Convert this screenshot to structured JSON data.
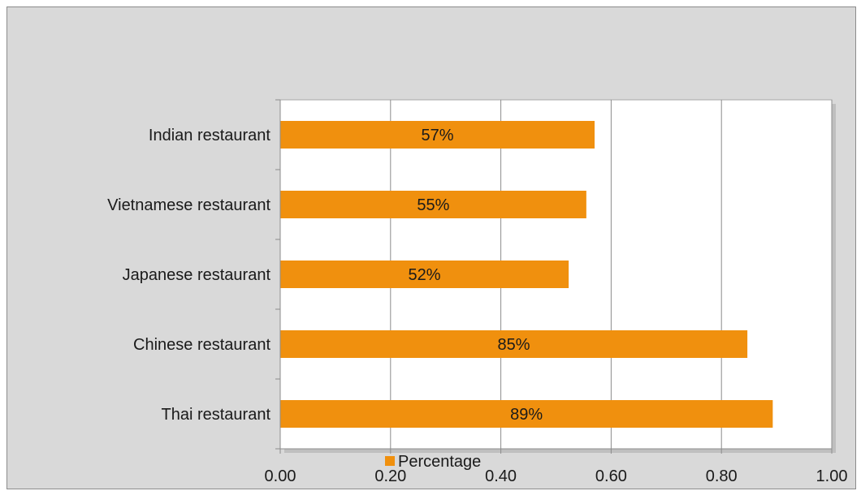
{
  "chart_data": {
    "type": "bar",
    "orientation": "horizontal",
    "categories": [
      "Indian restaurant",
      "Vietnamese restaurant",
      "Japanese restaurant",
      "Chinese restaurant",
      "Thai restaurant"
    ],
    "series": [
      {
        "name": "Percentage",
        "values": [
          0.57,
          0.555,
          0.523,
          0.847,
          0.893
        ],
        "data_labels": [
          "57%",
          "55%",
          "52%",
          "85%",
          "89%"
        ]
      }
    ],
    "xlim": [
      0,
      1.0
    ],
    "x_ticks": [
      0.0,
      0.2,
      0.4,
      0.6,
      0.8,
      1.0
    ],
    "x_tick_labels": [
      "0.00",
      "0.20",
      "0.40",
      "0.60",
      "0.80",
      "1.00"
    ],
    "grid": "vertical",
    "legend_position": "bottom",
    "colors": {
      "bar": "#F0900E",
      "frame_bg": "#D9D9D9",
      "plot_bg": "#FFFFFF",
      "grid": "#8C8C8C"
    }
  }
}
